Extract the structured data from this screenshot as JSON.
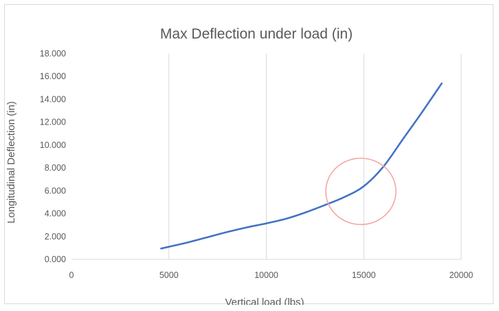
{
  "chart_data": {
    "type": "line",
    "title": "Max Deflection under load (in)",
    "xlabel": "Vertical load (lbs)",
    "ylabel": "Longitudinal Deflection (in)",
    "xlim": [
      0,
      20000
    ],
    "ylim": [
      0,
      18
    ],
    "x_ticks": [
      "0",
      "5000",
      "10000",
      "15000",
      "20000"
    ],
    "y_ticks": [
      "0.000",
      "2.000",
      "4.000",
      "6.000",
      "8.000",
      "10.000",
      "12.000",
      "14.000",
      "16.000",
      "18.000"
    ],
    "grid": "vertical",
    "series": [
      {
        "color": "#4472c4",
        "x": [
          4600,
          6000,
          7000,
          8000,
          9000,
          10000,
          11000,
          12000,
          13000,
          14000,
          15000,
          16000,
          17000,
          18000,
          19000
        ],
        "values": [
          0.95,
          1.5,
          1.95,
          2.4,
          2.8,
          3.15,
          3.55,
          4.1,
          4.75,
          5.45,
          6.4,
          8.1,
          10.5,
          12.9,
          15.4
        ]
      }
    ],
    "annotation": {
      "shape": "ellipse",
      "color": "#f4a6a0",
      "center_x": 14850,
      "center_y": 5.95,
      "rx_data": 1800,
      "ry_data": 2.9
    }
  }
}
